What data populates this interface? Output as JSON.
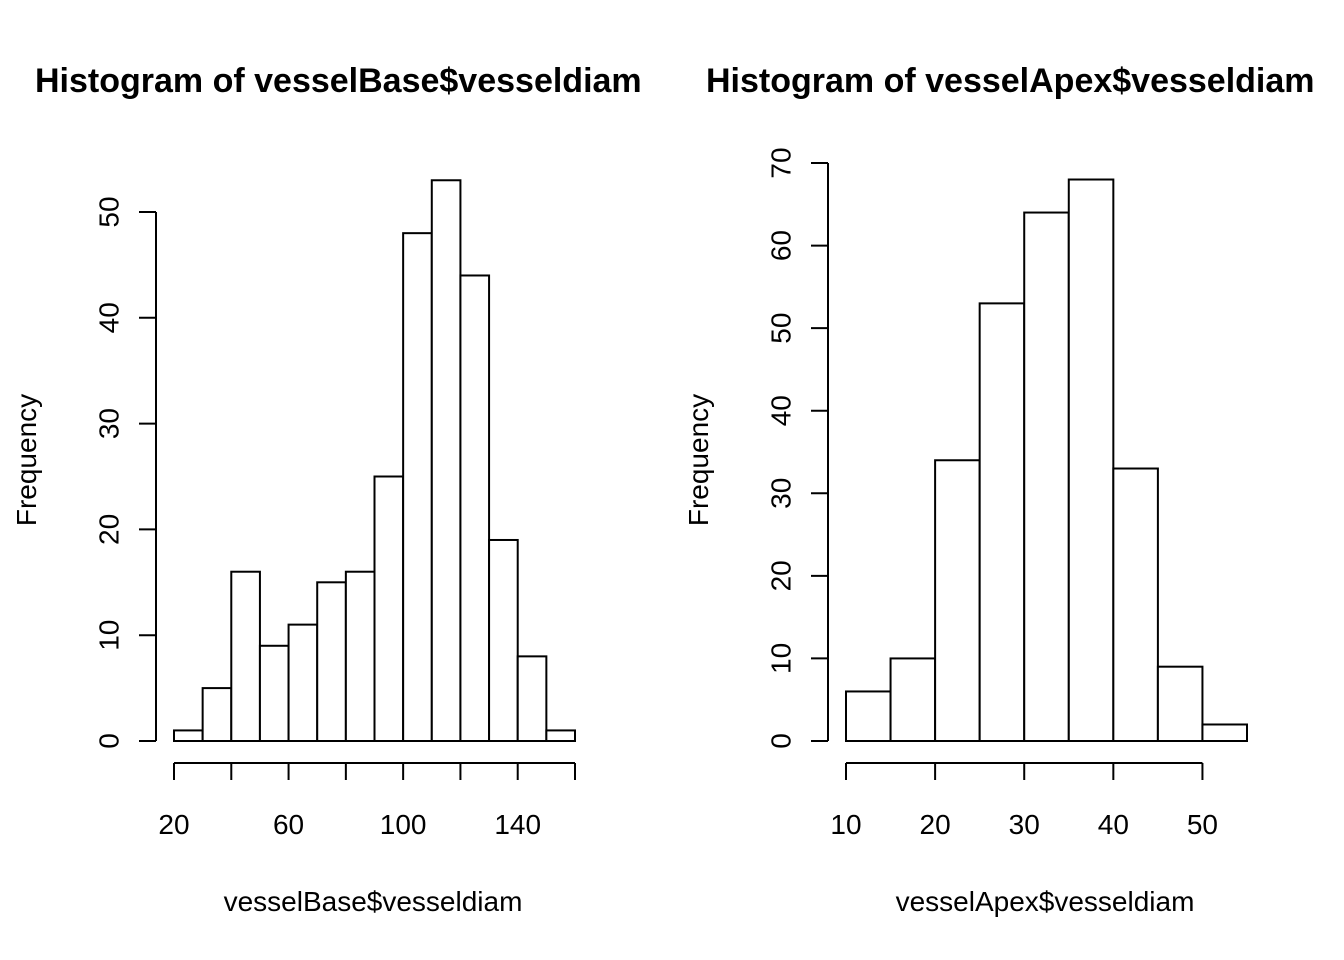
{
  "chart_data": [
    {
      "type": "bar",
      "title": "Histogram of vesselBase$vesseldiam",
      "xlabel": "vesselBase$vesseldiam",
      "ylabel": "Frequency",
      "bin_edges": [
        20,
        30,
        40,
        50,
        60,
        70,
        80,
        90,
        100,
        110,
        120,
        130,
        140,
        150,
        160
      ],
      "values": [
        1,
        5,
        16,
        9,
        11,
        15,
        16,
        25,
        48,
        53,
        44,
        19,
        8,
        1
      ],
      "xlim": [
        20,
        160
      ],
      "ylim": [
        0,
        55
      ],
      "x_ticks": [
        20,
        40,
        60,
        80,
        100,
        120,
        140,
        160
      ],
      "x_tick_labels": [
        "20",
        "",
        "60",
        "",
        "100",
        "",
        "140",
        ""
      ],
      "y_ticks": [
        0,
        10,
        20,
        30,
        40,
        50
      ],
      "y_tick_labels": [
        "0",
        "10",
        "20",
        "30",
        "40",
        "50"
      ],
      "grid": false
    },
    {
      "type": "bar",
      "title": "Histogram of vesselApex$vesseldiam",
      "xlabel": "vesselApex$vesseldiam",
      "ylabel": "Frequency",
      "bin_edges": [
        10,
        15,
        20,
        25,
        30,
        35,
        40,
        45,
        50,
        55
      ],
      "values": [
        6,
        10,
        34,
        53,
        64,
        68,
        33,
        9,
        2
      ],
      "xlim": [
        10,
        55
      ],
      "ylim": [
        0,
        70
      ],
      "x_ticks": [
        10,
        20,
        30,
        40,
        50
      ],
      "x_tick_labels": [
        "10",
        "20",
        "30",
        "40",
        "50"
      ],
      "y_ticks": [
        0,
        10,
        20,
        30,
        40,
        50,
        60,
        70
      ],
      "y_tick_labels": [
        "0",
        "10",
        "20",
        "30",
        "40",
        "50",
        "60",
        "70"
      ],
      "grid": false
    }
  ]
}
